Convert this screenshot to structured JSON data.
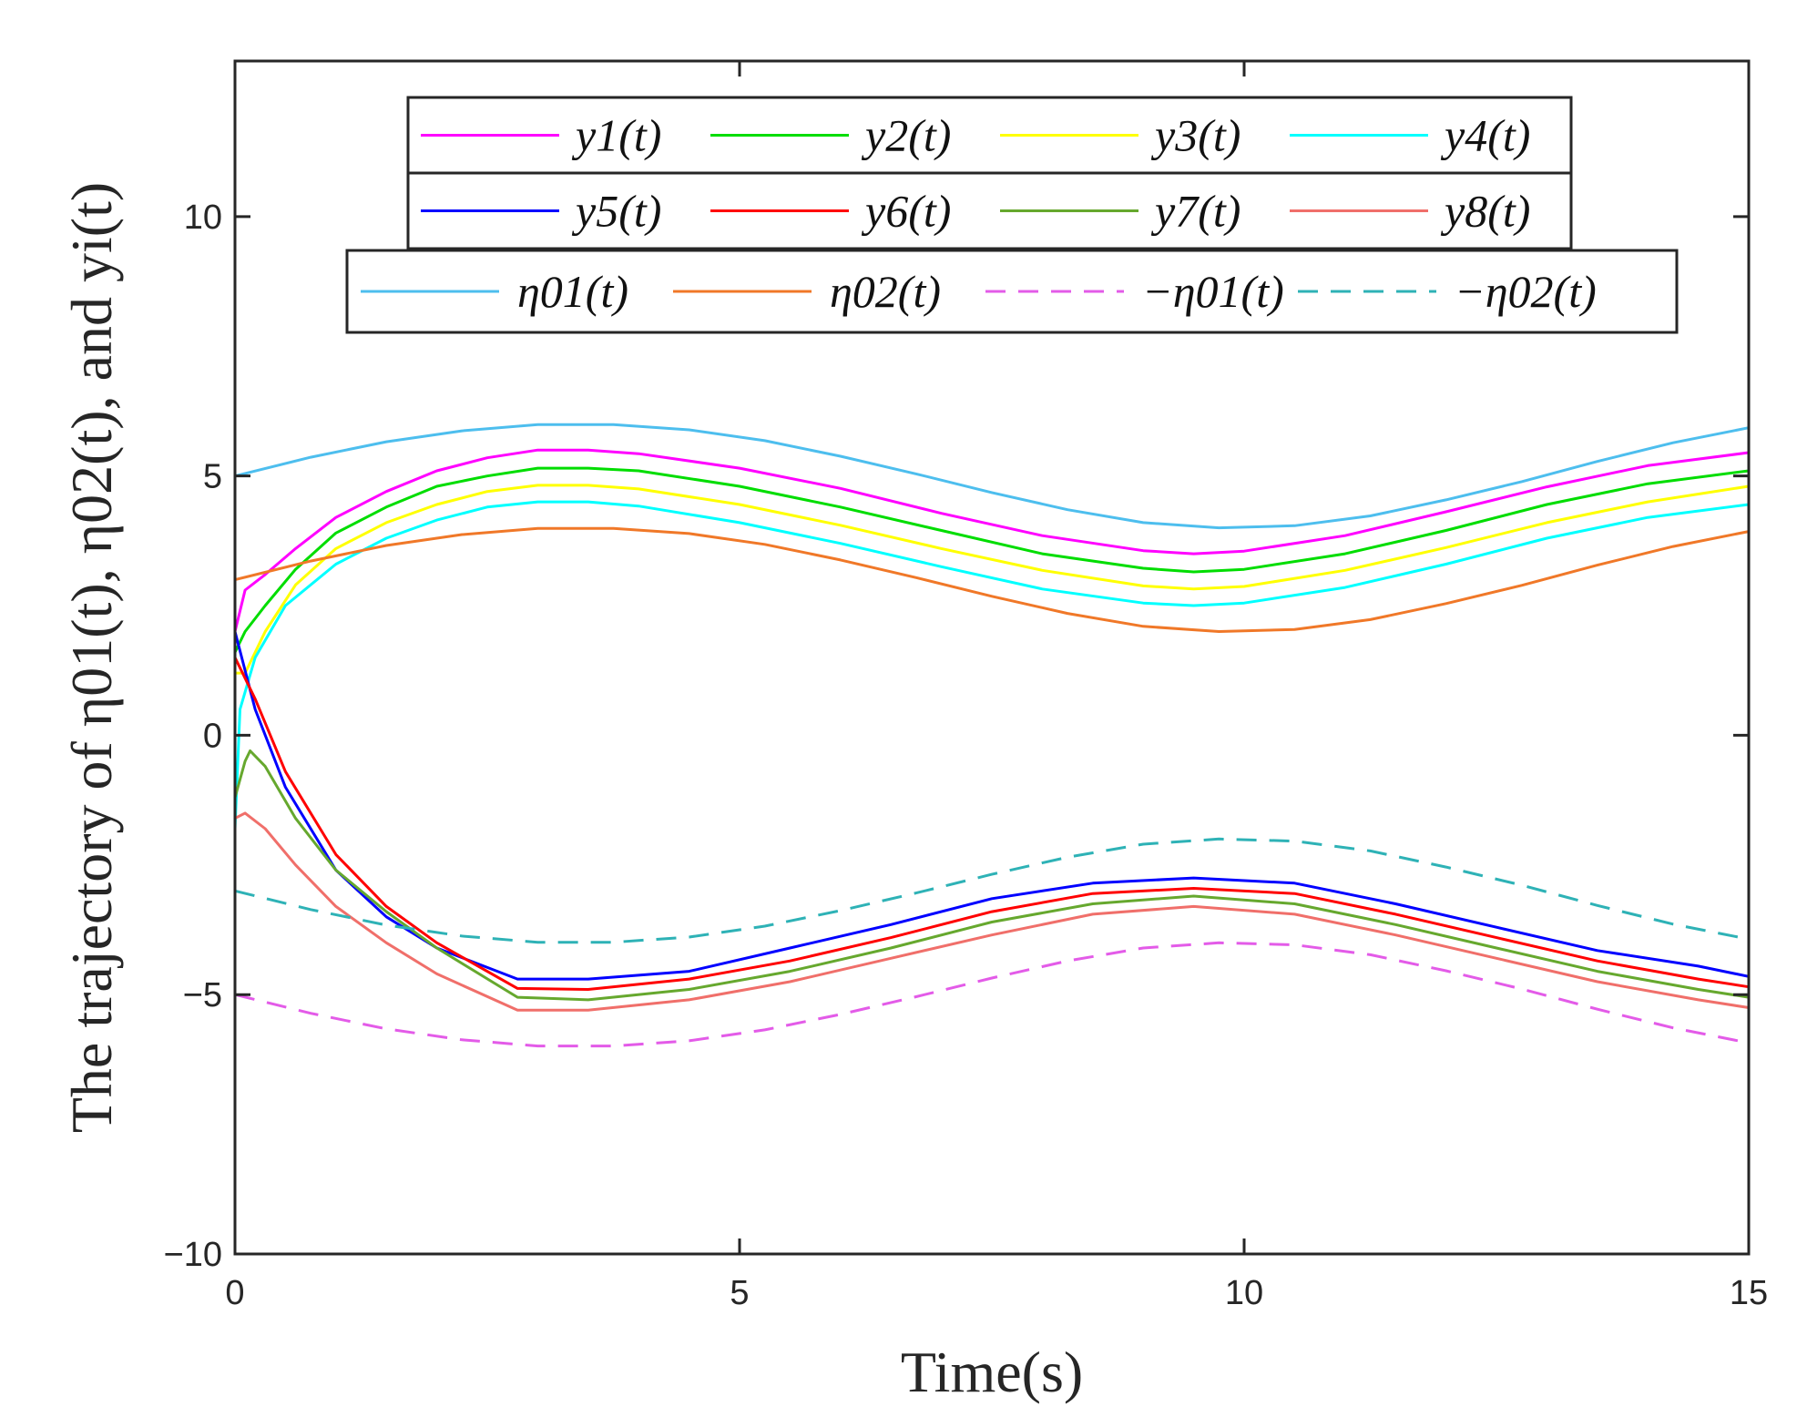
{
  "chart_data": {
    "type": "line",
    "title": "",
    "xlabel": "Time(s)",
    "ylabel": "The trajectory of η01(t), η02(t), and yi(t)",
    "xlim": [
      0,
      15
    ],
    "ylim": [
      -10,
      13
    ],
    "grid": false,
    "legend_position": "top",
    "x_ticks": [
      {
        "value": 0,
        "label": "0"
      },
      {
        "value": 5,
        "label": "5"
      },
      {
        "value": 10,
        "label": "10"
      },
      {
        "value": 15,
        "label": "15"
      }
    ],
    "y_ticks": [
      {
        "value": -10,
        "label": "−10"
      },
      {
        "value": -5,
        "label": "−5"
      },
      {
        "value": 0,
        "label": "0"
      },
      {
        "value": 5,
        "label": "5"
      },
      {
        "value": 10,
        "label": "10"
      }
    ],
    "legend_rows": [
      [
        "y1",
        "y2",
        "y3",
        "y4"
      ],
      [
        "y5",
        "y6",
        "y7",
        "y8"
      ],
      [
        "eta01",
        "eta02",
        "neta01",
        "neta02"
      ]
    ],
    "series": [
      {
        "id": "y1",
        "name": "y1(t)",
        "color": "#FF00FF",
        "dash": "solid",
        "x": [
          0,
          0.1,
          0.3,
          0.6,
          1.0,
          1.5,
          2.0,
          2.5,
          3.0,
          3.5,
          4,
          5,
          6,
          7,
          8,
          9,
          9.5,
          10,
          11,
          12,
          13,
          14,
          15
        ],
        "y": [
          2.0,
          2.8,
          3.1,
          3.6,
          4.2,
          4.7,
          5.1,
          5.35,
          5.5,
          5.5,
          5.43,
          5.15,
          4.76,
          4.28,
          3.85,
          3.56,
          3.5,
          3.55,
          3.85,
          4.31,
          4.79,
          5.2,
          5.45
        ]
      },
      {
        "id": "y2",
        "name": "y2(t)",
        "color": "#00DD00",
        "dash": "solid",
        "x": [
          0,
          0.1,
          0.3,
          0.6,
          1.0,
          1.5,
          2.0,
          2.5,
          3.0,
          3.5,
          4,
          5,
          6,
          7,
          8,
          9,
          9.5,
          10,
          11,
          12,
          13,
          14,
          15
        ],
        "y": [
          1.6,
          2.0,
          2.5,
          3.2,
          3.9,
          4.4,
          4.8,
          5.0,
          5.15,
          5.15,
          5.1,
          4.8,
          4.4,
          3.95,
          3.5,
          3.22,
          3.15,
          3.2,
          3.5,
          3.95,
          4.45,
          4.85,
          5.1
        ]
      },
      {
        "id": "y3",
        "name": "y3(t)",
        "color": "#FFFF00",
        "dash": "solid",
        "x": [
          0,
          0.1,
          0.3,
          0.6,
          1.0,
          1.5,
          2.0,
          2.5,
          3.0,
          3.5,
          4,
          5,
          6,
          7,
          8,
          9,
          9.5,
          10,
          11,
          12,
          13,
          14,
          15
        ],
        "y": [
          1.2,
          1.2,
          2.0,
          2.9,
          3.6,
          4.1,
          4.45,
          4.7,
          4.82,
          4.82,
          4.75,
          4.45,
          4.05,
          3.6,
          3.18,
          2.88,
          2.82,
          2.87,
          3.18,
          3.62,
          4.1,
          4.5,
          4.8
        ]
      },
      {
        "id": "y4",
        "name": "y4(t)",
        "color": "#00FFFF",
        "dash": "solid",
        "x": [
          0,
          0.05,
          0.2,
          0.5,
          1.0,
          1.5,
          2.0,
          2.5,
          3.0,
          3.5,
          4,
          5,
          6,
          7,
          8,
          9,
          9.5,
          10,
          11,
          12,
          13,
          14,
          15
        ],
        "y": [
          -1.8,
          0.5,
          1.5,
          2.5,
          3.3,
          3.8,
          4.15,
          4.4,
          4.5,
          4.5,
          4.42,
          4.1,
          3.7,
          3.25,
          2.82,
          2.55,
          2.5,
          2.55,
          2.85,
          3.3,
          3.8,
          4.2,
          4.45
        ]
      },
      {
        "id": "y5",
        "name": "y5(t)",
        "color": "#0000FF",
        "dash": "solid",
        "x": [
          0,
          0.2,
          0.5,
          1.0,
          1.5,
          2.0,
          2.8,
          3.5,
          4.5,
          5.5,
          6.5,
          7.5,
          8.5,
          9.5,
          10.5,
          11.5,
          12.5,
          13.5,
          14.5,
          15
        ],
        "y": [
          2.0,
          0.5,
          -1.0,
          -2.6,
          -3.5,
          -4.1,
          -4.7,
          -4.7,
          -4.55,
          -4.1,
          -3.65,
          -3.15,
          -2.85,
          -2.75,
          -2.85,
          -3.25,
          -3.7,
          -4.15,
          -4.45,
          -4.65
        ]
      },
      {
        "id": "y6",
        "name": "y6(t)",
        "color": "#FF0000",
        "dash": "solid",
        "x": [
          0,
          0.2,
          0.5,
          1.0,
          1.5,
          2.0,
          2.8,
          3.5,
          4.5,
          5.5,
          6.5,
          7.5,
          8.5,
          9.5,
          10.5,
          11.5,
          12.5,
          13.5,
          14.5,
          15
        ],
        "y": [
          1.5,
          0.7,
          -0.7,
          -2.3,
          -3.3,
          -4.0,
          -4.88,
          -4.9,
          -4.7,
          -4.35,
          -3.9,
          -3.4,
          -3.05,
          -2.95,
          -3.05,
          -3.45,
          -3.9,
          -4.35,
          -4.7,
          -4.85
        ]
      },
      {
        "id": "y7",
        "name": "y7(t)",
        "color": "#66A82E",
        "dash": "solid",
        "x": [
          0,
          0.1,
          0.15,
          0.3,
          0.6,
          1.0,
          1.5,
          2.0,
          2.8,
          3.5,
          4.5,
          5.5,
          6.5,
          7.5,
          8.5,
          9.5,
          10.5,
          11.5,
          12.5,
          13.5,
          14.5,
          15
        ],
        "y": [
          -1.2,
          -0.5,
          -0.3,
          -0.6,
          -1.6,
          -2.6,
          -3.4,
          -4.1,
          -5.05,
          -5.1,
          -4.9,
          -4.55,
          -4.1,
          -3.6,
          -3.25,
          -3.1,
          -3.25,
          -3.65,
          -4.1,
          -4.55,
          -4.9,
          -5.05
        ]
      },
      {
        "id": "y8",
        "name": "y8(t)",
        "color": "#F06F6A",
        "dash": "solid",
        "x": [
          0,
          0.1,
          0.3,
          0.6,
          1.0,
          1.5,
          2.0,
          2.8,
          3.5,
          4.5,
          5.5,
          6.5,
          7.5,
          8.5,
          9.5,
          10.5,
          11.5,
          12.5,
          13.5,
          14.5,
          15
        ],
        "y": [
          -1.6,
          -1.5,
          -1.8,
          -2.5,
          -3.3,
          -4.0,
          -4.6,
          -5.3,
          -5.3,
          -5.1,
          -4.75,
          -4.3,
          -3.85,
          -3.45,
          -3.3,
          -3.45,
          -3.85,
          -4.3,
          -4.75,
          -5.1,
          -5.25
        ]
      },
      {
        "id": "eta01",
        "name": "η01(t)",
        "color": "#4DBEEE",
        "dash": "solid",
        "x": [
          0,
          0.75,
          1.5,
          2.25,
          3.0,
          3.75,
          4.5,
          5.25,
          6.0,
          6.75,
          7.5,
          8.25,
          9.0,
          9.75,
          10.5,
          11.25,
          12.0,
          12.75,
          13.5,
          14.25,
          15
        ],
        "y": [
          5.0,
          5.36,
          5.66,
          5.87,
          5.99,
          5.99,
          5.89,
          5.68,
          5.38,
          5.04,
          4.68,
          4.35,
          4.1,
          4.0,
          4.04,
          4.23,
          4.54,
          4.89,
          5.28,
          5.64,
          5.93
        ]
      },
      {
        "id": "eta02",
        "name": "η02(t)",
        "color": "#F07828",
        "dash": "solid",
        "x": [
          0,
          0.75,
          1.5,
          2.25,
          3.0,
          3.75,
          4.5,
          5.25,
          6.0,
          6.75,
          7.5,
          8.25,
          9.0,
          9.75,
          10.5,
          11.25,
          12.0,
          12.75,
          13.5,
          14.25,
          15
        ],
        "y": [
          3.0,
          3.36,
          3.66,
          3.87,
          3.99,
          3.99,
          3.89,
          3.68,
          3.38,
          3.04,
          2.68,
          2.35,
          2.1,
          2.0,
          2.04,
          2.23,
          2.54,
          2.89,
          3.28,
          3.64,
          3.93
        ]
      },
      {
        "id": "neta01",
        "name": "−η01(t)",
        "color": "#E35BE8",
        "dash": "dashed",
        "x": [
          0,
          0.75,
          1.5,
          2.25,
          3.0,
          3.75,
          4.5,
          5.25,
          6.0,
          6.75,
          7.5,
          8.25,
          9.0,
          9.75,
          10.5,
          11.25,
          12.0,
          12.75,
          13.5,
          14.25,
          15
        ],
        "y": [
          -5.0,
          -5.36,
          -5.66,
          -5.87,
          -5.99,
          -5.99,
          -5.89,
          -5.68,
          -5.38,
          -5.04,
          -4.68,
          -4.35,
          -4.1,
          -4.0,
          -4.04,
          -4.23,
          -4.54,
          -4.89,
          -5.28,
          -5.64,
          -5.93
        ]
      },
      {
        "id": "neta02",
        "name": "−η02(t)",
        "color": "#2EB2B6",
        "dash": "dashed",
        "x": [
          0,
          0.75,
          1.5,
          2.25,
          3.0,
          3.75,
          4.5,
          5.25,
          6.0,
          6.75,
          7.5,
          8.25,
          9.0,
          9.75,
          10.5,
          11.25,
          12.0,
          12.75,
          13.5,
          14.25,
          15
        ],
        "y": [
          -3.0,
          -3.36,
          -3.66,
          -3.87,
          -3.99,
          -3.99,
          -3.89,
          -3.68,
          -3.38,
          -3.04,
          -2.68,
          -2.35,
          -2.1,
          -2.0,
          -2.04,
          -2.23,
          -2.54,
          -2.89,
          -3.28,
          -3.64,
          -3.93
        ]
      }
    ]
  }
}
